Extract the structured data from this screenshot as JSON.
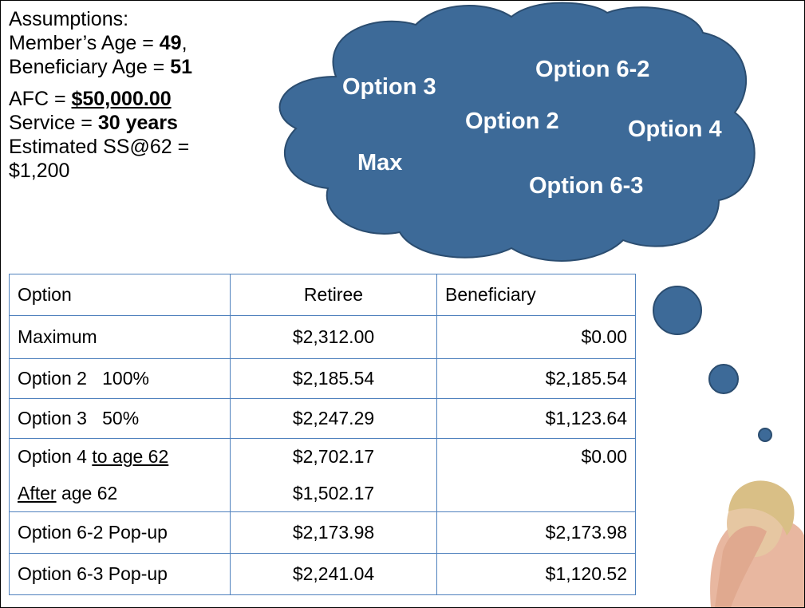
{
  "assumptions": {
    "groups": [
      [
        [
          {
            "text": "Assumptions:"
          }
        ],
        [
          {
            "text": "Member’s Age = "
          },
          {
            "text": "49",
            "bold": true
          },
          {
            "text": ","
          }
        ],
        [
          {
            "text": "Beneficiary Age = "
          },
          {
            "text": "51",
            "bold": true
          }
        ]
      ],
      [
        [
          {
            "text": "AFC = "
          },
          {
            "text": "$50,000.00",
            "bold": true,
            "underline": true
          }
        ],
        [
          {
            "text": "Service = "
          },
          {
            "text": "30 years",
            "bold": true
          }
        ],
        [
          {
            "text": "Estimated SS@62 ="
          }
        ],
        [
          {
            "text": "$1,200"
          }
        ]
      ]
    ]
  },
  "cloud": {
    "labels": [
      "Option 3",
      "Option 6-2",
      "Option 2",
      "Option 4",
      "Max",
      "Option 6-3"
    ]
  },
  "table": {
    "header": [
      "Option",
      "Retiree",
      "Beneficiary"
    ],
    "rows": [
      [
        [
          {
            "text": "Maximum"
          }
        ],
        "$2,312.00",
        "$0.00"
      ],
      [
        [
          {
            "text": "Option 2   100%"
          }
        ],
        "$2,185.54",
        "$2,185.54"
      ],
      [
        [
          {
            "text": "Option 3   50%"
          }
        ],
        "$2,247.29",
        "$1,123.64"
      ],
      [
        [
          {
            "text": "Option 4 "
          },
          {
            "text": "to age 62",
            "underline": true
          }
        ],
        "$2,702.17",
        "$0.00"
      ],
      [
        [
          {
            "text": "After",
            "underline": true
          },
          {
            "text": " age 62"
          }
        ],
        "$1,502.17",
        null
      ],
      [
        [
          {
            "text": "Option 6-2 Pop-up"
          }
        ],
        "$2,173.98",
        "$2,173.98"
      ],
      [
        [
          {
            "text": "Option 6-3 Pop-up"
          }
        ],
        "$2,241.04",
        "$1,120.52"
      ]
    ]
  }
}
